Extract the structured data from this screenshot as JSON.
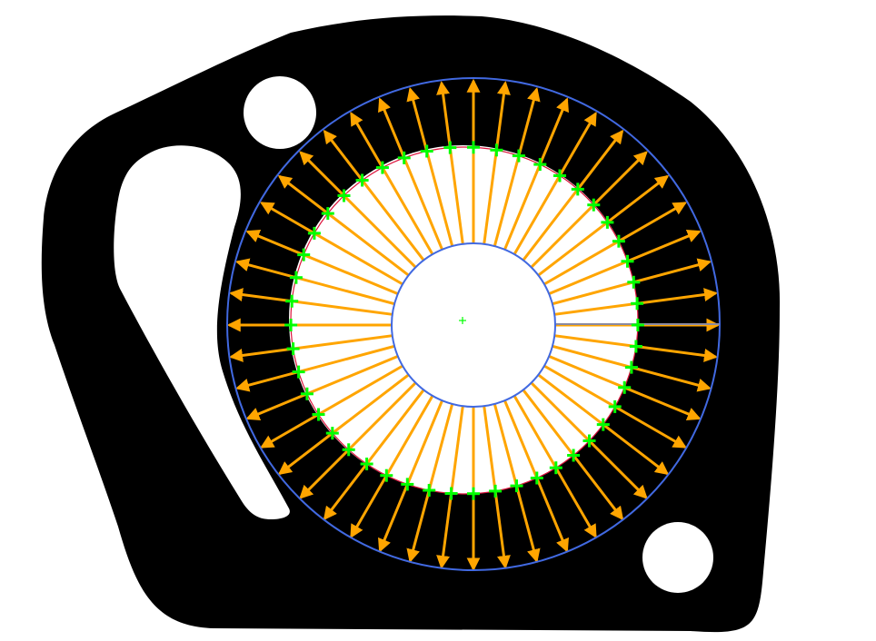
{
  "colors": {
    "background": "#ffffff",
    "part": "#000000",
    "ray": "#ffa500",
    "edge_marker": "#00ff00",
    "search_circle": "#4169e1",
    "fitted_circle": "#dc143c",
    "center_marker": "#00ff00",
    "reference_ray": "#8a8aa0"
  },
  "measurement": {
    "ray_count": 48,
    "edge_points_visible": true,
    "center_marker_visible": true
  },
  "icons": {
    "edge_marker": "plus-marker-icon",
    "center_marker": "plus-marker-icon"
  }
}
